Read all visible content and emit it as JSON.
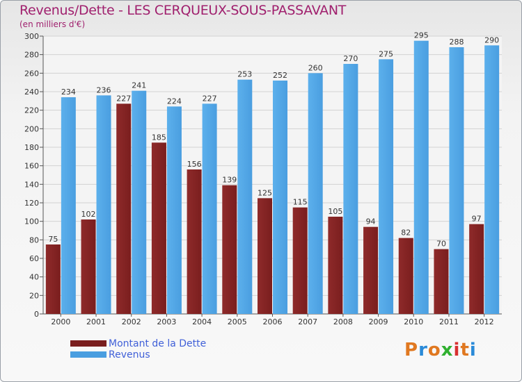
{
  "title": "Revenus/Dette - LES CERQUEUX-SOUS-PASSAVANT",
  "subtitle": "(en milliers d'€)",
  "logo": {
    "text": "Proxiti",
    "letter_colors": [
      "#e07820",
      "#2a8ad8",
      "#e07820",
      "#30b030",
      "#d83030",
      "#e07820",
      "#2a8ad8"
    ]
  },
  "colors": {
    "series_0": "#7a1e1e",
    "series_1": "#4a9ee0"
  },
  "legend": {
    "items": [
      {
        "label": "Montant de la Dette"
      },
      {
        "label": "Revenus"
      }
    ]
  },
  "chart_data": {
    "type": "bar",
    "categories": [
      "2000",
      "2001",
      "2002",
      "2003",
      "2004",
      "2005",
      "2006",
      "2007",
      "2008",
      "2009",
      "2010",
      "2011",
      "2012"
    ],
    "series": [
      {
        "name": "Montant de la Dette",
        "values": [
          75,
          102,
          227,
          185,
          156,
          139,
          125,
          115,
          105,
          94,
          82,
          70,
          97
        ]
      },
      {
        "name": "Revenus",
        "values": [
          234,
          236,
          241,
          224,
          227,
          253,
          252,
          260,
          270,
          275,
          295,
          288,
          290
        ]
      }
    ],
    "ylim": [
      0,
      300
    ],
    "yticks": [
      0,
      20,
      40,
      60,
      80,
      100,
      120,
      140,
      160,
      180,
      200,
      220,
      240,
      260,
      280,
      300
    ],
    "grid": true,
    "data_labels": true,
    "legend_position": "bottom-left"
  }
}
